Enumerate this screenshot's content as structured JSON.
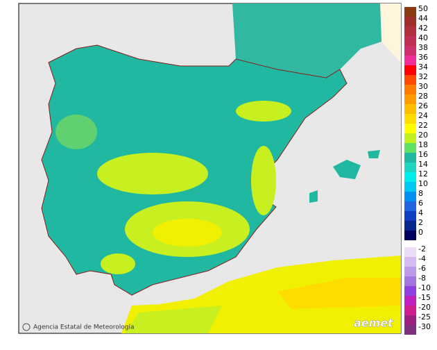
{
  "map": {
    "legend": {
      "items": [
        {
          "label": 50,
          "color": "#8b3a12"
        },
        {
          "label": 44,
          "color": "#a0302c"
        },
        {
          "label": 42,
          "color": "#b03040"
        },
        {
          "label": 40,
          "color": "#c03052"
        },
        {
          "label": 38,
          "color": "#d03070"
        },
        {
          "label": 36,
          "color": "#f03098"
        },
        {
          "label": 34,
          "color": "#ff0000"
        },
        {
          "label": 32,
          "color": "#ff4a00"
        },
        {
          "label": 30,
          "color": "#ff7a00"
        },
        {
          "label": 28,
          "color": "#ff9c00"
        },
        {
          "label": 26,
          "color": "#ffbe00"
        },
        {
          "label": 24,
          "color": "#ffdc00"
        },
        {
          "label": 22,
          "color": "#ffff00"
        },
        {
          "label": 20,
          "color": "#c0f020"
        },
        {
          "label": 18,
          "color": "#60e060"
        },
        {
          "label": 16,
          "color": "#20b8a0"
        },
        {
          "label": 14,
          "color": "#20d4c0"
        },
        {
          "label": 12,
          "color": "#00ecec"
        },
        {
          "label": 10,
          "color": "#00c8f4"
        },
        {
          "label": 8,
          "color": "#0090f0"
        },
        {
          "label": 6,
          "color": "#2064e0"
        },
        {
          "label": 4,
          "color": "#1040c0"
        },
        {
          "label": 2,
          "color": "#082890"
        },
        {
          "label": 0,
          "color": "#000060"
        }
      ],
      "negative_items": [
        {
          "label": -2,
          "color": "#ecdcfa"
        },
        {
          "label": -4,
          "color": "#d4bcf2"
        },
        {
          "label": -6,
          "color": "#bc9cea"
        },
        {
          "label": -8,
          "color": "#a476e2"
        },
        {
          "label": -10,
          "color": "#9040e0"
        },
        {
          "label": -15,
          "color": "#c020c0"
        },
        {
          "label": -20,
          "color": "#d02090"
        },
        {
          "label": -25,
          "color": "#a02080"
        },
        {
          "label": -30,
          "color": "#803080"
        }
      ]
    },
    "attribution": "Agencia Estatal de Meteorología",
    "logo": "aemet"
  }
}
